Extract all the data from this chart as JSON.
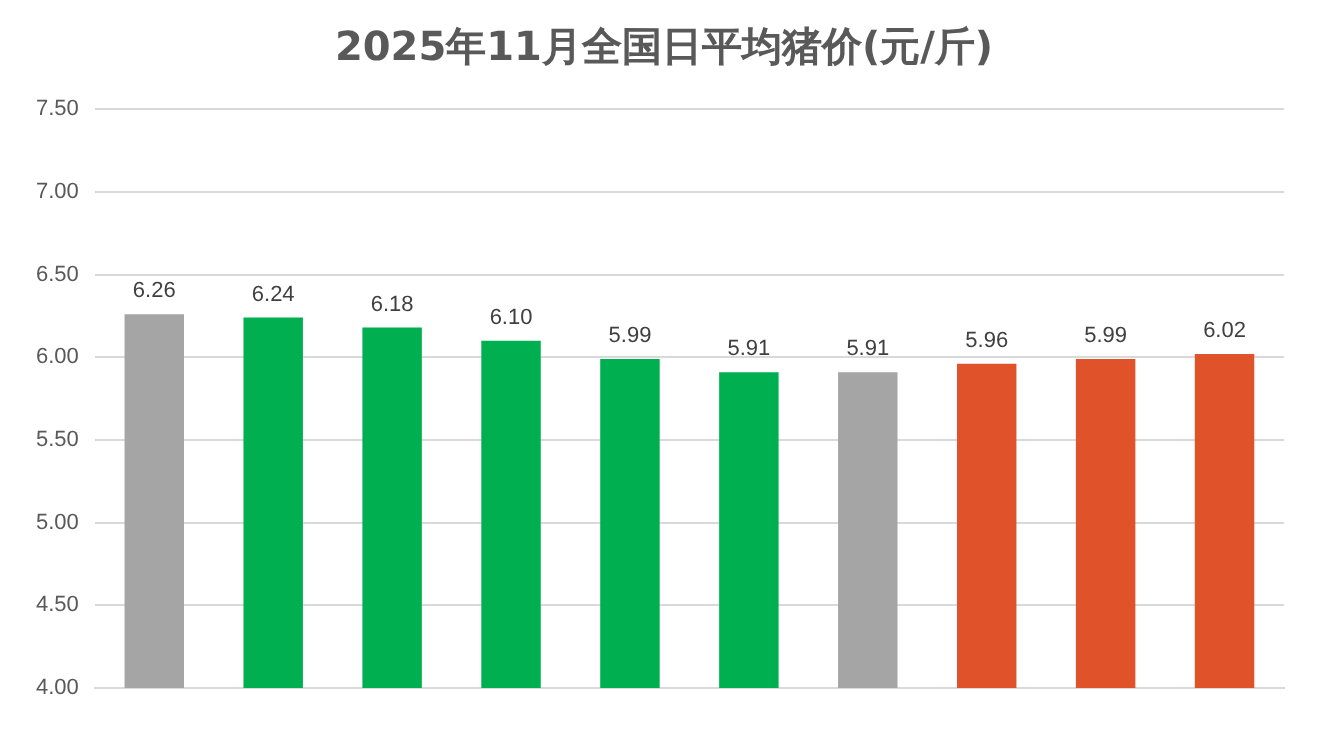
{
  "chart_data": {
    "type": "bar",
    "title": "2025年11月全国日平均猪价(元/斤)",
    "categories": [
      null,
      null,
      null,
      null,
      null,
      null,
      null,
      null,
      null,
      null
    ],
    "values": [
      6.26,
      6.24,
      6.18,
      6.1,
      5.99,
      5.91,
      5.91,
      5.96,
      5.99,
      6.02
    ],
    "colors": [
      "#a5a5a5",
      "#00b050",
      "#00b050",
      "#00b050",
      "#00b050",
      "#00b050",
      "#a5a5a5",
      "#e0522a",
      "#e0522a",
      "#e0522a"
    ],
    "value_labels": [
      "6.26",
      "6.24",
      "6.18",
      "6.10",
      "5.99",
      "5.91",
      "5.91",
      "5.96",
      "5.99",
      "6.02"
    ],
    "ylim": [
      4,
      7.5
    ],
    "yticks": [
      {
        "value": 4,
        "label": "4.00"
      },
      {
        "value": 4.5,
        "label": "4.50"
      },
      {
        "value": 5,
        "label": "5.00"
      },
      {
        "value": 5.5,
        "label": "5.50"
      },
      {
        "value": 6,
        "label": "6.00"
      },
      {
        "value": 6.5,
        "label": "6.50"
      },
      {
        "value": 7,
        "label": "7.00"
      },
      {
        "value": 7.5,
        "label": "7.50"
      }
    ],
    "grid": "y",
    "legend": false
  }
}
